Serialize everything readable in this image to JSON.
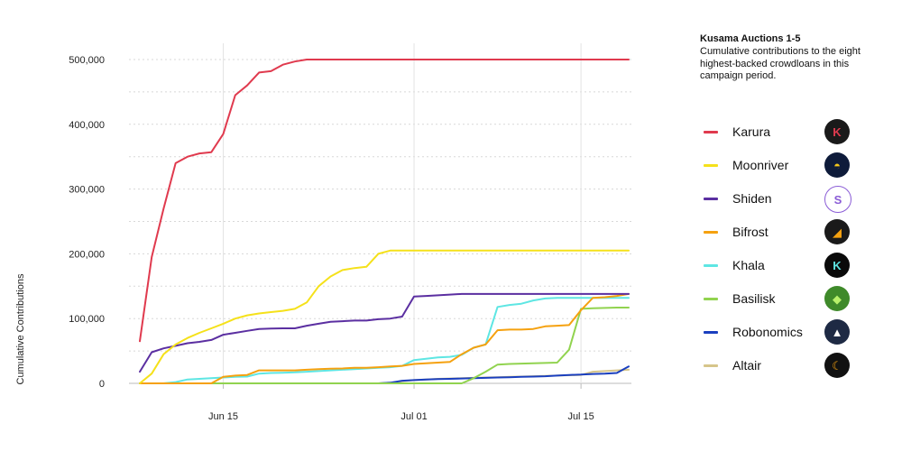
{
  "chart_data": {
    "type": "line",
    "title": "Kusama Auctions 1-5",
    "subtitle": "Cumulative contributions to the eight highest-backed crowdloans in this campaign period.",
    "xlabel": "",
    "ylabel": "Cumulative Contributions",
    "x": [
      "Jun 08",
      "Jun 09",
      "Jun 10",
      "Jun 11",
      "Jun 12",
      "Jun 13",
      "Jun 14",
      "Jun 15",
      "Jun 16",
      "Jun 17",
      "Jun 18",
      "Jun 19",
      "Jun 20",
      "Jun 21",
      "Jun 22",
      "Jun 23",
      "Jun 24",
      "Jun 25",
      "Jun 26",
      "Jun 27",
      "Jun 28",
      "Jun 29",
      "Jun 30",
      "Jul 01",
      "Jul 02",
      "Jul 03",
      "Jul 04",
      "Jul 05",
      "Jul 06",
      "Jul 07",
      "Jul 08",
      "Jul 09",
      "Jul 10",
      "Jul 11",
      "Jul 12",
      "Jul 13",
      "Jul 14",
      "Jul 15",
      "Jul 16",
      "Jul 17",
      "Jul 18",
      "Jul 19"
    ],
    "x_ticks": [
      "Jun 15",
      "Jul 01",
      "Jul 15"
    ],
    "y_ticks": [
      0,
      100000,
      200000,
      300000,
      400000,
      500000
    ],
    "y_tick_labels": [
      "0",
      "100,000",
      "200,000",
      "300,000",
      "400,000",
      "500,000"
    ],
    "ylim": [
      0,
      500000
    ],
    "grid": "dotted horizontal, solid vertical at ticks",
    "series": [
      {
        "name": "Karura",
        "color": "#e03a4e",
        "values": [
          65000,
          195000,
          270000,
          340000,
          350000,
          355000,
          357000,
          385000,
          445000,
          460000,
          480000,
          482000,
          492000,
          497000,
          500000,
          500000,
          500000,
          500000,
          500000,
          500000,
          500000,
          500000,
          500000,
          500000,
          500000,
          500000,
          500000,
          500000,
          500000,
          500000,
          500000,
          500000,
          500000,
          500000,
          500000,
          500000,
          500000,
          500000,
          500000,
          500000,
          500000,
          500000
        ]
      },
      {
        "name": "Moonriver",
        "color": "#f5e11a",
        "values": [
          0,
          15000,
          45000,
          60000,
          70000,
          78000,
          85000,
          92000,
          100000,
          105000,
          108000,
          110000,
          112000,
          115000,
          125000,
          150000,
          165000,
          175000,
          178000,
          180000,
          200000,
          205000,
          205000,
          205000,
          205000,
          205000,
          205000,
          205000,
          205000,
          205000,
          205000,
          205000,
          205000,
          205000,
          205000,
          205000,
          205000,
          205000,
          205000,
          205000,
          205000,
          205000
        ]
      },
      {
        "name": "Shiden",
        "color": "#5b2fa1",
        "values": [
          18000,
          48000,
          54000,
          58000,
          62000,
          64000,
          67000,
          75000,
          78000,
          81000,
          84000,
          84500,
          85000,
          85000,
          89000,
          92000,
          95000,
          96000,
          97000,
          97000,
          99000,
          100000,
          103000,
          134000,
          135000,
          136000,
          137000,
          138000,
          138000,
          138000,
          138000,
          138000,
          138000,
          138000,
          138000,
          138000,
          138000,
          138000,
          138000,
          138000,
          138000,
          138000
        ]
      },
      {
        "name": "Bifrost",
        "color": "#f5a10f",
        "values": [
          0,
          0,
          0,
          0,
          0,
          0,
          0,
          10000,
          12000,
          13000,
          20000,
          20000,
          20000,
          20000,
          21000,
          22000,
          22500,
          23000,
          24000,
          24000,
          25000,
          26000,
          27000,
          30000,
          31000,
          32000,
          33000,
          45000,
          55000,
          60000,
          82000,
          83000,
          83000,
          84000,
          88000,
          89000,
          90000,
          113000,
          132000,
          133000,
          135000,
          138000
        ]
      },
      {
        "name": "Khala",
        "color": "#5ee6e3",
        "values": [
          0,
          0,
          0,
          2000,
          6000,
          7000,
          8000,
          9000,
          10000,
          10500,
          15000,
          16000,
          16500,
          17000,
          18000,
          19000,
          20000,
          21000,
          22000,
          23000,
          24000,
          25000,
          27000,
          36000,
          38000,
          40000,
          41000,
          44000,
          55000,
          60000,
          118000,
          121000,
          123000,
          128000,
          131000,
          132000,
          132000,
          132000,
          132000,
          132000,
          132000,
          132000
        ]
      },
      {
        "name": "Basilisk",
        "color": "#91d34f",
        "values": [
          0,
          0,
          0,
          0,
          0,
          0,
          0,
          0,
          0,
          0,
          0,
          0,
          0,
          0,
          0,
          0,
          0,
          0,
          0,
          0,
          0,
          0,
          0,
          0,
          0,
          0,
          0,
          0,
          8000,
          18000,
          29000,
          30000,
          30500,
          31000,
          31500,
          32000,
          52000,
          115000,
          116000,
          116500,
          117000,
          117000
        ]
      },
      {
        "name": "Robonomics",
        "color": "#1a3fbf",
        "values": [
          0,
          0,
          0,
          0,
          0,
          0,
          0,
          0,
          0,
          0,
          0,
          0,
          0,
          0,
          0,
          0,
          0,
          0,
          0,
          0,
          0,
          1000,
          4000,
          5000,
          6000,
          6500,
          7000,
          7500,
          8000,
          8500,
          9000,
          9500,
          10000,
          10500,
          11000,
          12000,
          13000,
          13500,
          14500,
          15000,
          16000,
          26000
        ]
      },
      {
        "name": "Altair",
        "color": "#d6c58a",
        "values": [
          0,
          0,
          0,
          0,
          0,
          0,
          0,
          0,
          0,
          0,
          0,
          0,
          0,
          0,
          0,
          0,
          0,
          0,
          0,
          0,
          0,
          1000,
          3000,
          5000,
          6000,
          7000,
          7500,
          8000,
          8500,
          9000,
          9500,
          10000,
          10500,
          11000,
          11500,
          12000,
          12500,
          13000,
          18000,
          19000,
          20000,
          21000
        ]
      }
    ]
  },
  "legend_icons": [
    {
      "series": "Karura",
      "icon": "karura-logo-icon",
      "glyph": "K",
      "bg": "#1a1a1a",
      "fg": "#e03a4e"
    },
    {
      "series": "Moonriver",
      "icon": "moonriver-logo-icon",
      "glyph": "◓",
      "bg": "#0e1b3a",
      "fg": "#f5c71a"
    },
    {
      "series": "Shiden",
      "icon": "shiden-logo-icon",
      "glyph": "S",
      "bg": "#ffffff",
      "fg": "#8a5cd6"
    },
    {
      "series": "Bifrost",
      "icon": "bifrost-logo-icon",
      "glyph": "◢",
      "bg": "#1a1a1a",
      "fg": "#f5a10f"
    },
    {
      "series": "Khala",
      "icon": "khala-logo-icon",
      "glyph": "K",
      "bg": "#0a0a0a",
      "fg": "#5ee6e3"
    },
    {
      "series": "Basilisk",
      "icon": "basilisk-logo-icon",
      "glyph": "◆",
      "bg": "#3f8a2a",
      "fg": "#b8f06a"
    },
    {
      "series": "Robonomics",
      "icon": "robonomics-logo-icon",
      "glyph": "▲",
      "bg": "#1e2a44",
      "fg": "#ffffff"
    },
    {
      "series": "Altair",
      "icon": "altair-logo-icon",
      "glyph": "☾",
      "bg": "#111111",
      "fg": "#f5a10f"
    }
  ]
}
